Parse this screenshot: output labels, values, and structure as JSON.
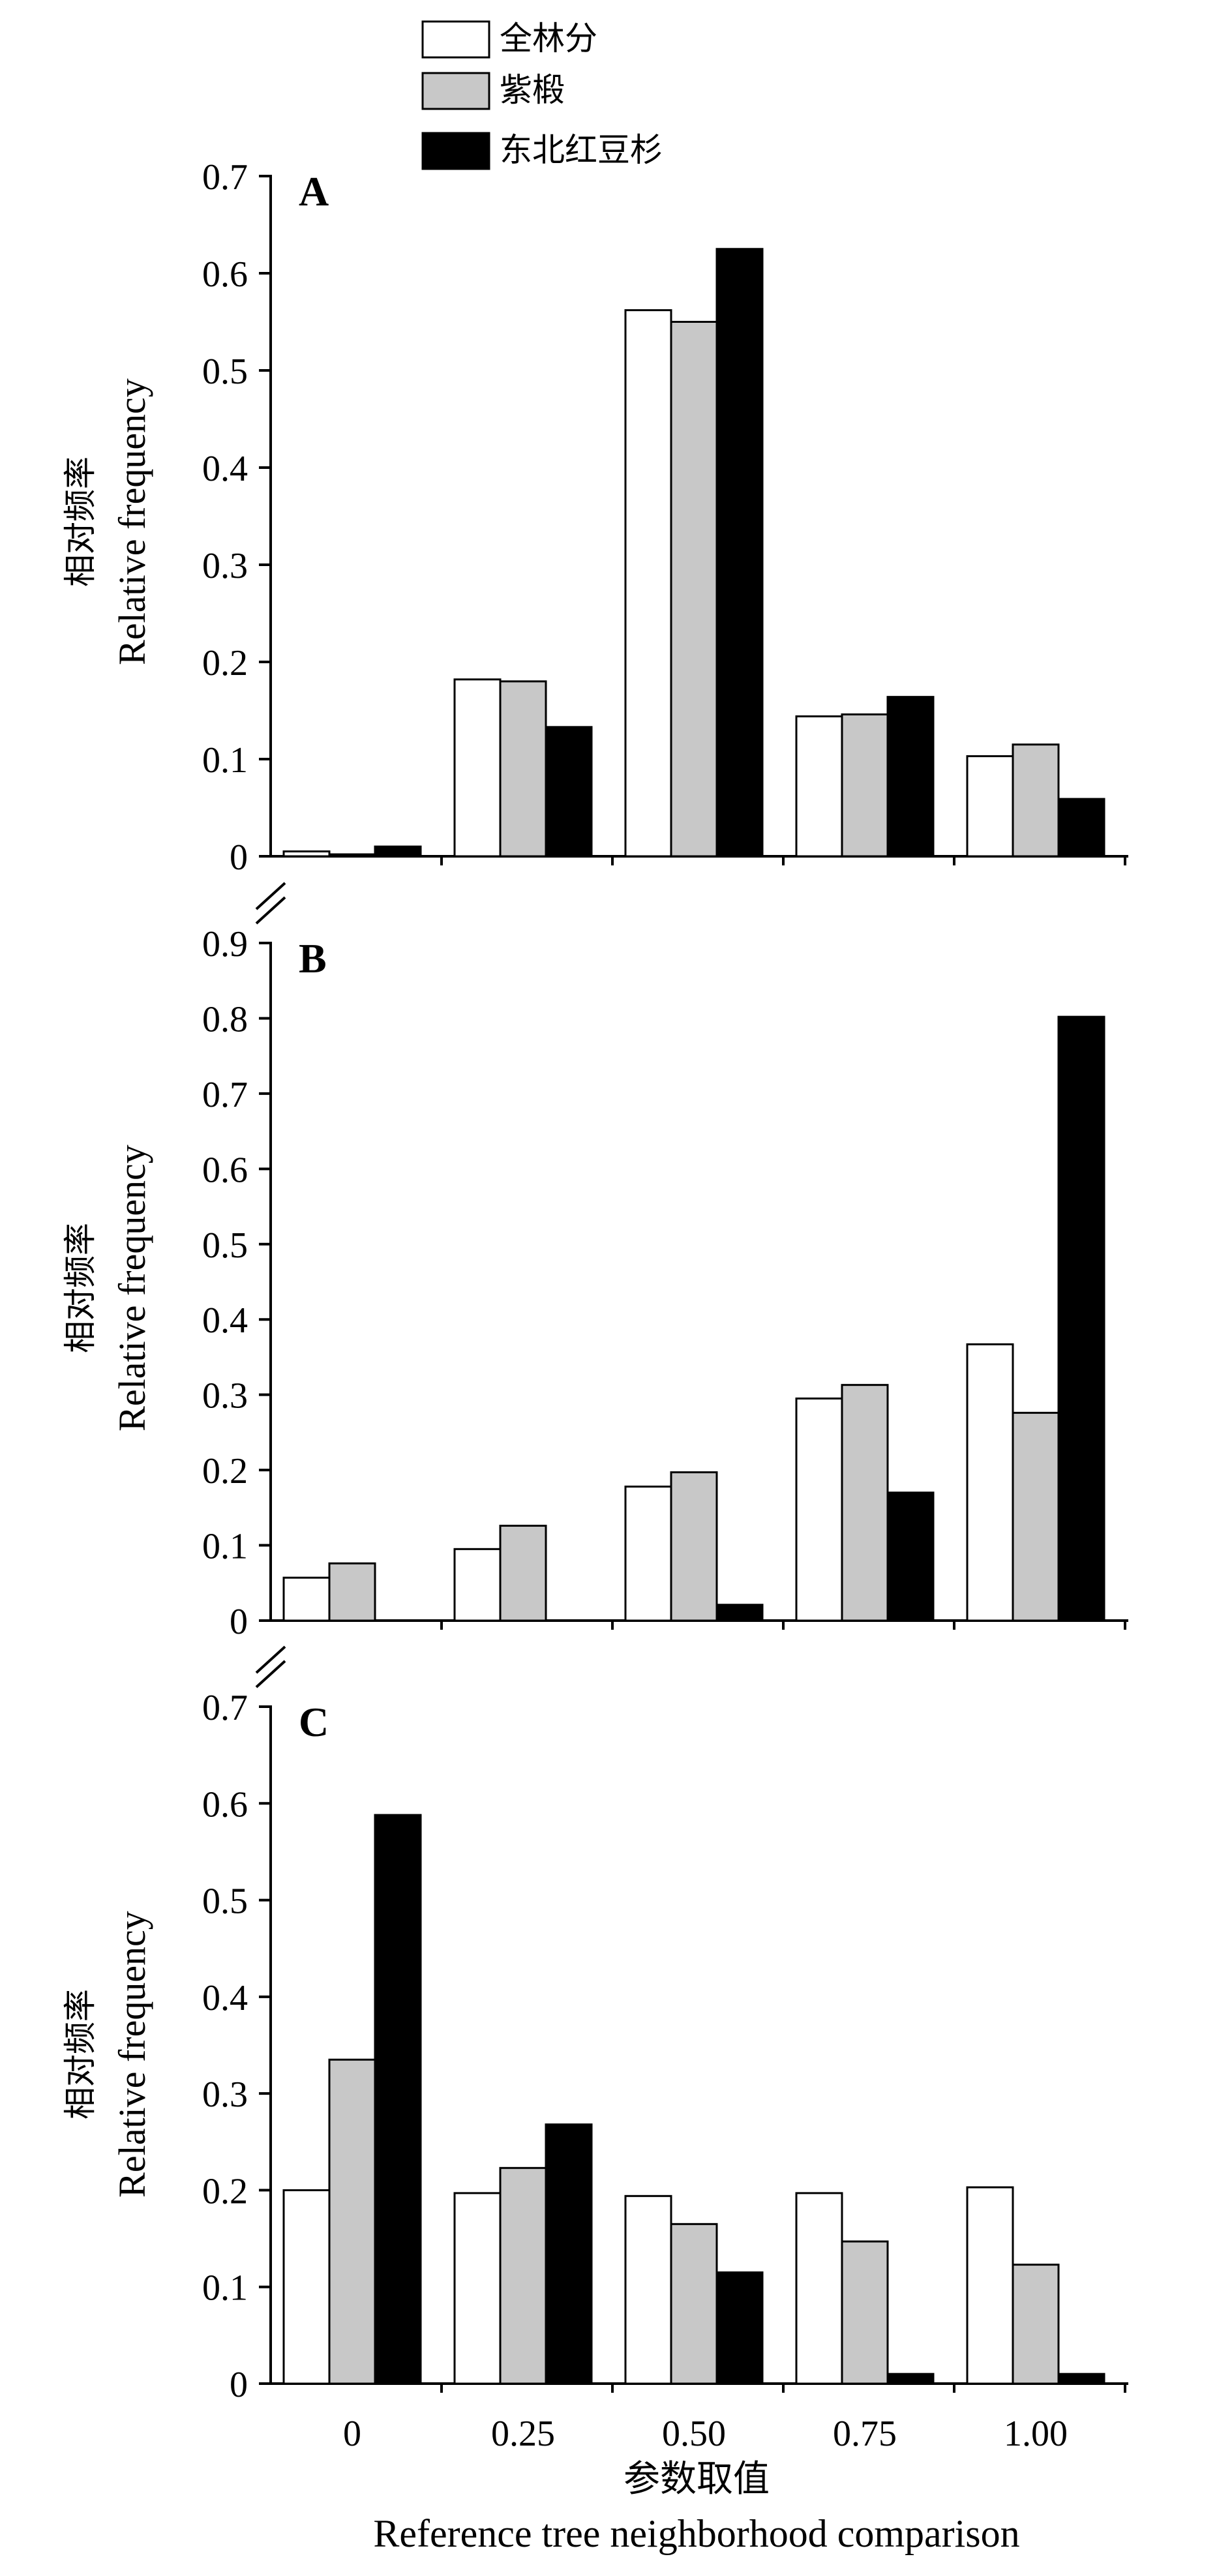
{
  "legend": {
    "items": [
      {
        "label": "全林分",
        "color": "#ffffff"
      },
      {
        "label": "紫椴",
        "color": "#c8c8c8"
      },
      {
        "label": "东北红豆杉",
        "color": "#000000"
      }
    ]
  },
  "axes": {
    "ylabel_cn": "相对频率",
    "ylabel_en": "Relative frequency",
    "xlabel_cn": "参数取值",
    "xlabel_en": "Reference tree neighborhood comparison"
  },
  "chart_data": [
    {
      "type": "bar",
      "panel": "A",
      "categories": [
        "0",
        "0.25",
        "0.50",
        "0.75",
        "1.00"
      ],
      "series": [
        {
          "name": "全林分",
          "values": [
            0.005,
            0.182,
            0.562,
            0.144,
            0.103
          ]
        },
        {
          "name": "紫椴",
          "values": [
            0.002,
            0.18,
            0.55,
            0.146,
            0.115
          ]
        },
        {
          "name": "东北红豆杉",
          "values": [
            0.01,
            0.133,
            0.625,
            0.164,
            0.059
          ]
        }
      ],
      "ylim": [
        0,
        0.7
      ],
      "yticks": [
        "0",
        "0.1",
        "0.2",
        "0.3",
        "0.4",
        "0.5",
        "0.6",
        "0.7"
      ]
    },
    {
      "type": "bar",
      "panel": "B",
      "categories": [
        "0",
        "0.25",
        "0.50",
        "0.75",
        "1.00"
      ],
      "series": [
        {
          "name": "全林分",
          "values": [
            0.057,
            0.095,
            0.178,
            0.295,
            0.367
          ]
        },
        {
          "name": "紫椴",
          "values": [
            0.076,
            0.126,
            0.197,
            0.313,
            0.276
          ]
        },
        {
          "name": "东北红豆杉",
          "values": [
            0.0,
            0.0,
            0.021,
            0.17,
            0.802
          ]
        }
      ],
      "ylim": [
        0,
        0.9
      ],
      "yticks": [
        "0",
        "0.1",
        "0.2",
        "0.3",
        "0.4",
        "0.5",
        "0.6",
        "0.7",
        "0.8",
        "0.9"
      ]
    },
    {
      "type": "bar",
      "panel": "C",
      "categories": [
        "0",
        "0.25",
        "0.50",
        "0.75",
        "1.00"
      ],
      "series": [
        {
          "name": "全林分",
          "values": [
            0.2,
            0.197,
            0.194,
            0.197,
            0.203
          ]
        },
        {
          "name": "紫椴",
          "values": [
            0.335,
            0.223,
            0.165,
            0.147,
            0.123
          ]
        },
        {
          "name": "东北红豆杉",
          "values": [
            0.588,
            0.268,
            0.115,
            0.01,
            0.01
          ]
        }
      ],
      "ylim": [
        0,
        0.7
      ],
      "yticks": [
        "0",
        "0.1",
        "0.2",
        "0.3",
        "0.4",
        "0.5",
        "0.6",
        "0.7"
      ]
    }
  ]
}
